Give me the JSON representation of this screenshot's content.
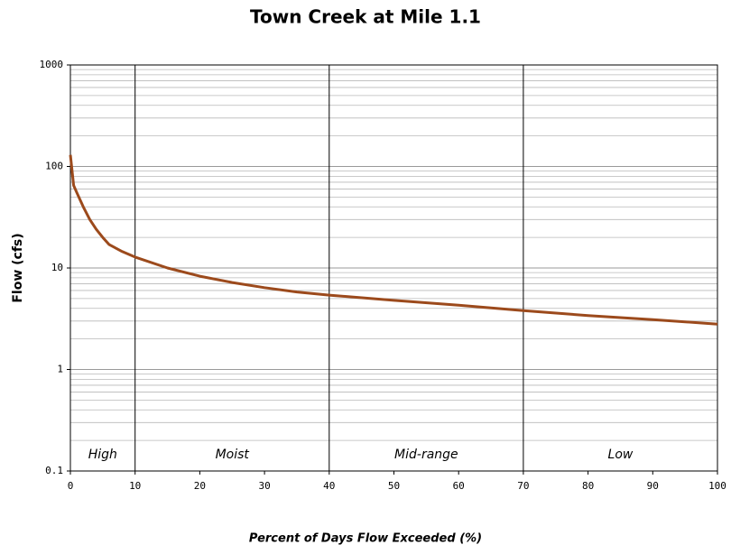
{
  "chart_data": {
    "type": "line",
    "title": "Town Creek at Mile 1.1",
    "xlabel": "Percent of Days Flow Exceeded (%)",
    "ylabel": "Flow (cfs)",
    "x": [
      0,
      0.5,
      1,
      2,
      3,
      4,
      5,
      6,
      8,
      10,
      15,
      20,
      25,
      30,
      35,
      40,
      50,
      60,
      70,
      80,
      90,
      100
    ],
    "series": [
      {
        "name": "Flow",
        "color": "#9c4a1c",
        "values": [
          130,
          65,
          55,
          40,
          30,
          24,
          20,
          17,
          14.5,
          12.8,
          10,
          8.3,
          7.2,
          6.4,
          5.8,
          5.4,
          4.8,
          4.3,
          3.8,
          3.4,
          3.1,
          2.8
        ]
      }
    ],
    "xlim": [
      0,
      100
    ],
    "xticks": [
      0,
      10,
      20,
      30,
      40,
      50,
      60,
      70,
      80,
      90,
      100
    ],
    "ylim": [
      0.1,
      1000
    ],
    "yticks": [
      0.1,
      1,
      10,
      100,
      1000
    ],
    "ylog": true,
    "ygrid": true,
    "minor_grid": true,
    "zones": [
      {
        "label": "High",
        "start": 0,
        "end": 10
      },
      {
        "label": "Moist",
        "start": 10,
        "end": 40
      },
      {
        "label": "Mid-range",
        "start": 40,
        "end": 70
      },
      {
        "label": "Low",
        "start": 70,
        "end": 100
      }
    ]
  }
}
